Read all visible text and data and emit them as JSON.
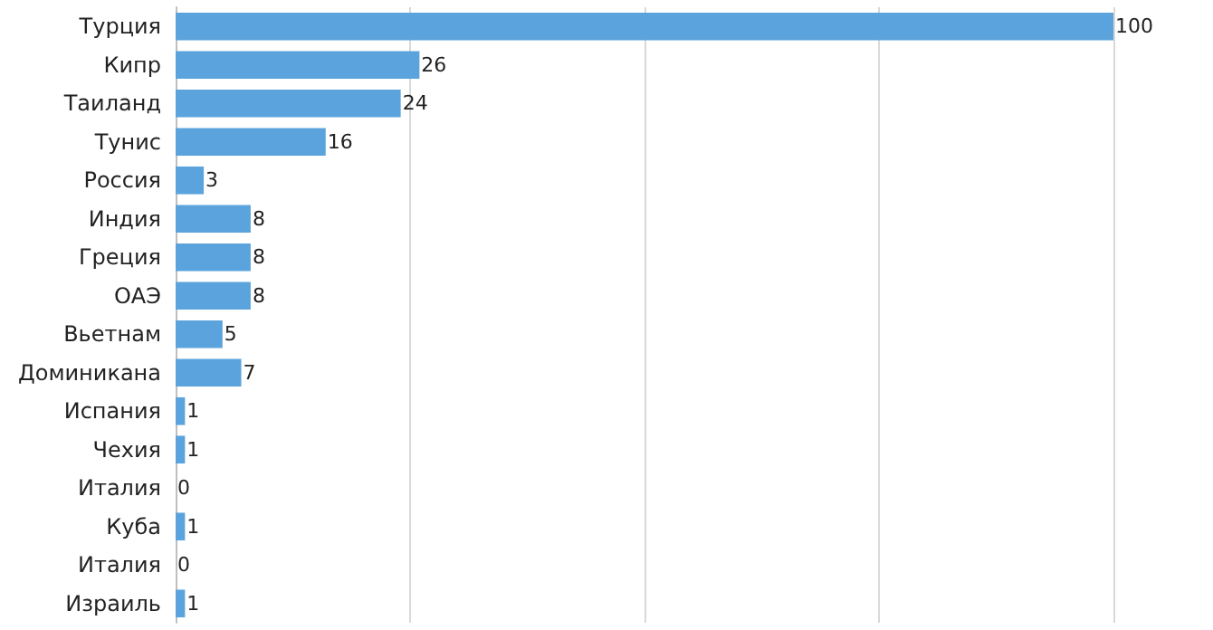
{
  "chart_data": {
    "type": "bar",
    "orientation": "horizontal",
    "categories": [
      "Турция",
      "Кипр",
      "Таиланд",
      "Тунис",
      "Россия",
      "Индия",
      "Греция",
      "ОАЭ",
      "Вьетнам",
      "Доминикана",
      "Испания",
      "Чехия",
      "Италия",
      "Куба",
      "Италия",
      "Израиль"
    ],
    "values": [
      100,
      26,
      24,
      16,
      3,
      8,
      8,
      8,
      5,
      7,
      1,
      1,
      0,
      1,
      0,
      1
    ],
    "color": "#5ba3dc",
    "xlim": [
      0,
      100
    ],
    "xticks": [
      {
        "value": 0,
        "label": null
      },
      {
        "value": 25,
        "label": null
      },
      {
        "value": 50,
        "label": null
      },
      {
        "value": 75,
        "label": null
      },
      {
        "value": 100,
        "label": null
      }
    ],
    "tick_labels": "y",
    "grid": "x",
    "data_labels": true
  }
}
